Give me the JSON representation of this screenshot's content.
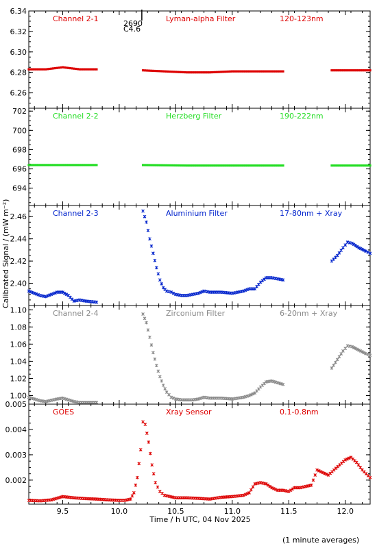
{
  "chart_data": {
    "type": "scatter",
    "x_label": "Time / h UTC, 04 Nov 2025",
    "y_label": "Calibrated Signal / (mW m⁻²)",
    "footnote": "(1 minute averages)",
    "xlim": [
      9.2,
      12.22
    ],
    "x_ticks": [
      9.5,
      10.0,
      10.5,
      11.0,
      11.5,
      12.0
    ],
    "x_tick_labels": [
      "9.5",
      "10.0",
      "10.5",
      "11.0",
      "11.5",
      "12.0"
    ],
    "marker_annotation": {
      "x": 10.2,
      "text_1": "2690",
      "text_2": "C4.6"
    },
    "panels": [
      {
        "channel": "Channel 2-1",
        "filter": "Lyman-alpha Filter",
        "band": "120-123nm",
        "color": "#dd0000",
        "marker": "square",
        "ylim": [
          6.245,
          6.34
        ],
        "y_ticks": [
          6.26,
          6.28,
          6.3,
          6.32,
          6.34
        ],
        "y_tick_labels": [
          "6.26",
          "6.28",
          "6.30",
          "6.32",
          "6.34"
        ],
        "segments": [
          {
            "x": [
              9.2,
              9.35,
              9.5,
              9.65,
              9.8
            ],
            "y": [
              6.283,
              6.283,
              6.285,
              6.283,
              6.283
            ]
          },
          {
            "x": [
              10.21,
              10.4,
              10.6,
              10.8,
              11.0,
              11.2,
              11.45
            ],
            "y": [
              6.282,
              6.281,
              6.28,
              6.28,
              6.281,
              6.281,
              6.281
            ]
          },
          {
            "x": [
              11.88,
              12.05,
              12.22
            ],
            "y": [
              6.282,
              6.282,
              6.282
            ]
          }
        ]
      },
      {
        "channel": "Channel 2-2",
        "filter": "Herzberg Filter",
        "band": "190-222nm",
        "color": "#22dd22",
        "marker": "square",
        "ylim": [
          692.2,
          702.3
        ],
        "y_ticks": [
          694,
          696,
          698,
          700,
          702
        ],
        "y_tick_labels": [
          "694",
          "696",
          "698",
          "700",
          "702"
        ],
        "segments": [
          {
            "x": [
              9.2,
              9.5,
              9.8
            ],
            "y": [
              696.4,
              696.4,
              696.4
            ]
          },
          {
            "x": [
              10.21,
              10.6,
              11.0,
              11.45
            ],
            "y": [
              696.4,
              696.35,
              696.35,
              696.35
            ]
          },
          {
            "x": [
              11.88,
              12.22
            ],
            "y": [
              696.35,
              696.35
            ]
          }
        ]
      },
      {
        "channel": "Channel 2-3",
        "filter": "Aluminium Filter",
        "band": "17-80nm + Xray",
        "color": "#0022cc",
        "marker": "star",
        "ylim": [
          2.38,
          2.47
        ],
        "y_ticks": [
          2.4,
          2.42,
          2.44,
          2.46
        ],
        "y_tick_labels": [
          "2.40",
          "2.42",
          "2.44",
          "2.46"
        ],
        "segments": [
          {
            "x": [
              9.2,
              9.3,
              9.35,
              9.45,
              9.5,
              9.55,
              9.6,
              9.65,
              9.7,
              9.8
            ],
            "y": [
              2.393,
              2.389,
              2.388,
              2.392,
              2.392,
              2.389,
              2.384,
              2.385,
              2.384,
              2.383
            ]
          },
          {
            "x": [
              10.21,
              10.24,
              10.27,
              10.3,
              10.33,
              10.36,
              10.39,
              10.42,
              10.46,
              10.5,
              10.55,
              10.6,
              10.65,
              10.7,
              10.75,
              10.8,
              10.9,
              11.0,
              11.1,
              11.15,
              11.2,
              11.25,
              11.3,
              11.35,
              11.45
            ],
            "y": [
              2.465,
              2.455,
              2.44,
              2.427,
              2.414,
              2.403,
              2.396,
              2.393,
              2.392,
              2.39,
              2.389,
              2.389,
              2.39,
              2.391,
              2.393,
              2.392,
              2.392,
              2.391,
              2.393,
              2.395,
              2.395,
              2.401,
              2.405,
              2.405,
              2.403
            ]
          },
          {
            "x": [
              11.88,
              11.93,
              11.98,
              12.02,
              12.06,
              12.12,
              12.18,
              12.22
            ],
            "y": [
              2.42,
              2.425,
              2.432,
              2.437,
              2.436,
              2.432,
              2.429,
              2.427
            ]
          }
        ]
      },
      {
        "channel": "Channel 2-4",
        "filter": "Zirconium Filter",
        "band": "6-20nm + Xray",
        "color": "#888888",
        "marker": "star",
        "ylim": [
          0.99,
          1.105
        ],
        "y_ticks": [
          1.0,
          1.02,
          1.04,
          1.06,
          1.08,
          1.1
        ],
        "y_tick_labels": [
          "1.00",
          "1.02",
          "1.04",
          "1.06",
          "1.08",
          "1.10"
        ],
        "segments": [
          {
            "x": [
              9.2,
              9.3,
              9.35,
              9.45,
              9.5,
              9.55,
              9.6,
              9.65,
              9.7,
              9.8
            ],
            "y": [
              0.998,
              0.994,
              0.993,
              0.996,
              0.997,
              0.995,
              0.993,
              0.992,
              0.992,
              0.992
            ]
          },
          {
            "x": [
              10.21,
              10.24,
              10.27,
              10.3,
              10.33,
              10.36,
              10.39,
              10.42,
              10.46,
              10.5,
              10.55,
              10.6,
              10.65,
              10.7,
              10.75,
              10.8,
              10.9,
              11.0,
              11.1,
              11.15,
              11.2,
              11.25,
              11.3,
              11.35,
              11.45
            ],
            "y": [
              1.095,
              1.085,
              1.068,
              1.05,
              1.035,
              1.022,
              1.012,
              1.004,
              0.998,
              0.996,
              0.995,
              0.995,
              0.995,
              0.996,
              0.998,
              0.997,
              0.997,
              0.996,
              0.998,
              1.0,
              1.003,
              1.01,
              1.016,
              1.017,
              1.013
            ]
          },
          {
            "x": [
              11.88,
              11.93,
              11.98,
              12.02,
              12.06,
              12.12,
              12.18,
              12.22
            ],
            "y": [
              1.032,
              1.042,
              1.052,
              1.058,
              1.057,
              1.053,
              1.049,
              1.047
            ]
          }
        ]
      },
      {
        "channel": "GOES",
        "filter": "Xray Sensor",
        "band": "0.1-0.8nm",
        "color": "#dd0000",
        "marker": "star",
        "ylim": [
          0.00105,
          0.005
        ],
        "y_ticks": [
          0.002,
          0.003,
          0.004,
          0.005
        ],
        "y_tick_labels": [
          "0.002",
          "0.003",
          "0.004",
          "0.005"
        ],
        "segments": [
          {
            "x": [
              9.2,
              9.3,
              9.4,
              9.5,
              9.6,
              9.7,
              9.8,
              9.9,
              10.0,
              10.05,
              10.1,
              10.13,
              10.16,
              10.19,
              10.21,
              10.23,
              10.26,
              10.29,
              10.32,
              10.36,
              10.4,
              10.45,
              10.5,
              10.6,
              10.7,
              10.8,
              10.9,
              11.0,
              11.1,
              11.15,
              11.2,
              11.25,
              11.3,
              11.35,
              11.4,
              11.45,
              11.5,
              11.55,
              11.6,
              11.7,
              11.75,
              11.8,
              11.85,
              11.9,
              11.95,
              12.0,
              12.05,
              12.1,
              12.15,
              12.22
            ],
            "y": [
              0.0012,
              0.00118,
              0.00122,
              0.00135,
              0.0013,
              0.00127,
              0.00125,
              0.00122,
              0.0012,
              0.0012,
              0.00125,
              0.0015,
              0.0021,
              0.0032,
              0.0043,
              0.0042,
              0.0035,
              0.0026,
              0.0019,
              0.00155,
              0.0014,
              0.00135,
              0.0013,
              0.0013,
              0.00128,
              0.00125,
              0.00132,
              0.00135,
              0.0014,
              0.0015,
              0.00185,
              0.0019,
              0.00185,
              0.0017,
              0.0016,
              0.0016,
              0.00155,
              0.0017,
              0.0017,
              0.0018,
              0.0024,
              0.0023,
              0.0022,
              0.0024,
              0.0026,
              0.0028,
              0.0029,
              0.0027,
              0.0024,
              0.0021
            ]
          }
        ]
      }
    ]
  }
}
